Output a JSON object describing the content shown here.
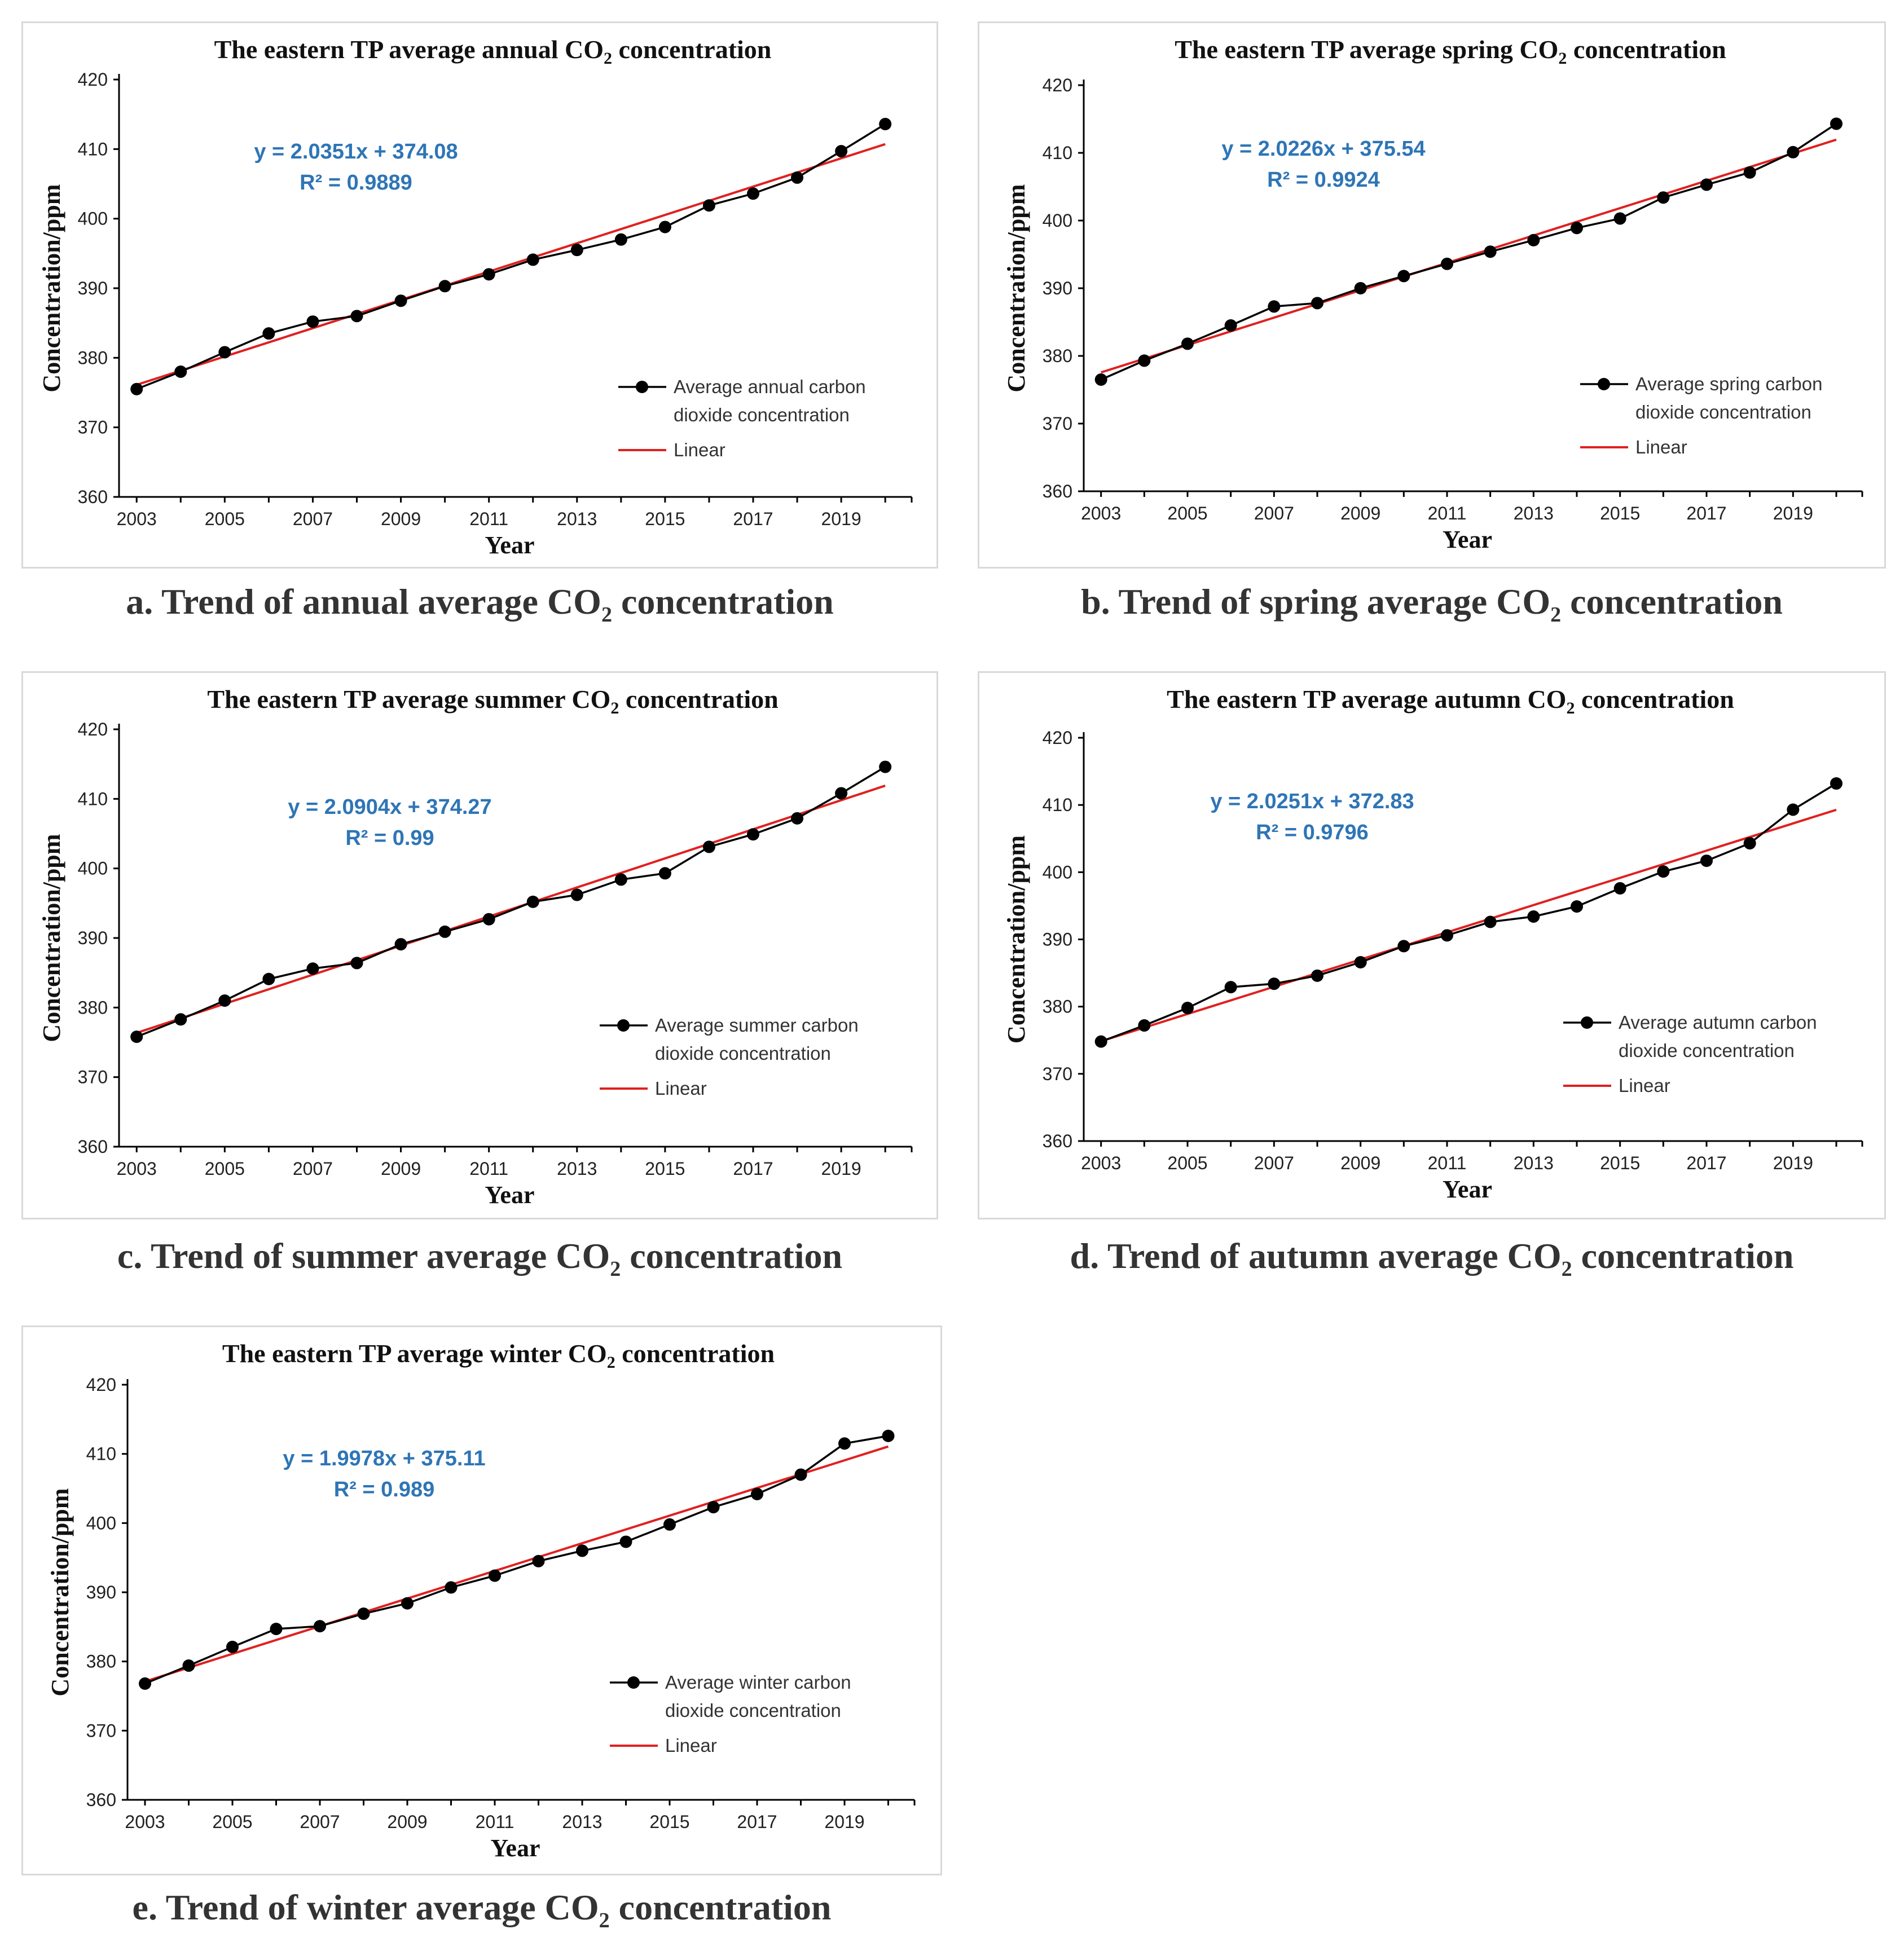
{
  "colors": {
    "series": "#000000",
    "trend": "#e02020",
    "equation": "#2e75b6",
    "axis": "#000000",
    "panel_border": "#d9d9d9",
    "caption": "#333333"
  },
  "captions": [
    {
      "prefix": "a. Trend of annual average CO",
      "sub": "2",
      "suffix": " concentration"
    },
    {
      "prefix": "b. Trend of spring average CO",
      "sub": "2",
      "suffix": " concentration"
    },
    {
      "prefix": "c. Trend of summer average CO",
      "sub": "2",
      "suffix": " concentration"
    },
    {
      "prefix": "d. Trend of autumn average CO",
      "sub": "2",
      "suffix": " concentration"
    },
    {
      "prefix": "e. Trend of winter average CO",
      "sub": "2",
      "suffix": " concentration"
    }
  ],
  "chart_data": [
    {
      "type": "line",
      "title_prefix": "The eastern TP average annual CO",
      "title_sub": "2",
      "title_suffix": " concentration",
      "xlabel": "Year",
      "ylabel": "Concentration/ppm",
      "ylim": [
        360,
        420
      ],
      "yticks": [
        "360",
        "370",
        "380",
        "390",
        "400",
        "410",
        "420"
      ],
      "xtick_labels": [
        "2003",
        "2005",
        "2007",
        "2009",
        "2011",
        "2013",
        "2015",
        "2017",
        "2019"
      ],
      "x": [
        2003,
        2004,
        2005,
        2006,
        2007,
        2008,
        2009,
        2010,
        2011,
        2012,
        2013,
        2014,
        2015,
        2016,
        2017,
        2018,
        2019,
        2020
      ],
      "values": [
        375.5,
        378.0,
        380.8,
        383.5,
        385.2,
        386.0,
        388.2,
        390.3,
        392.0,
        394.1,
        395.5,
        397.0,
        398.8,
        401.9,
        403.6,
        405.9,
        409.7,
        413.6
      ],
      "series_name_line1": "Average annual carbon",
      "series_name_line2": "dioxide concentration",
      "trend_name": "Linear",
      "equation": "y = 2.0351x + 374.08",
      "r2": "R² = 0.9889",
      "slope": 2.0351,
      "intercept": 374.08
    },
    {
      "type": "line",
      "title_prefix": "The eastern TP average spring CO",
      "title_sub": "2",
      "title_suffix": " concentration",
      "xlabel": "Year",
      "ylabel": "Concentration/ppm",
      "ylim": [
        360,
        420
      ],
      "yticks": [
        "360",
        "370",
        "380",
        "390",
        "400",
        "410",
        "420"
      ],
      "xtick_labels": [
        "2003",
        "2005",
        "2007",
        "2009",
        "2011",
        "2013",
        "2015",
        "2017",
        "2019"
      ],
      "x": [
        2003,
        2004,
        2005,
        2006,
        2007,
        2008,
        2009,
        2010,
        2011,
        2012,
        2013,
        2014,
        2015,
        2016,
        2017,
        2018,
        2019,
        2020
      ],
      "values": [
        376.5,
        379.3,
        381.8,
        384.5,
        387.3,
        387.8,
        390.0,
        391.8,
        393.6,
        395.4,
        397.1,
        398.9,
        400.3,
        403.4,
        405.3,
        407.1,
        410.1,
        414.3
      ],
      "series_name_line1": "Average spring carbon",
      "series_name_line2": "dioxide concentration",
      "trend_name": "Linear",
      "equation": "y = 2.0226x + 375.54",
      "r2": "R² = 0.9924",
      "slope": 2.0226,
      "intercept": 375.54
    },
    {
      "type": "line",
      "title_prefix": "The eastern TP average summer CO",
      "title_sub": "2",
      "title_suffix": " concentration",
      "xlabel": "Year",
      "ylabel": "Concentration/ppm",
      "ylim": [
        360,
        420
      ],
      "yticks": [
        "360",
        "370",
        "380",
        "390",
        "400",
        "410",
        "420"
      ],
      "xtick_labels": [
        "2003",
        "2005",
        "2007",
        "2009",
        "2011",
        "2013",
        "2015",
        "2017",
        "2019"
      ],
      "x": [
        2003,
        2004,
        2005,
        2006,
        2007,
        2008,
        2009,
        2010,
        2011,
        2012,
        2013,
        2014,
        2015,
        2016,
        2017,
        2018,
        2019,
        2020
      ],
      "values": [
        375.8,
        378.3,
        381.0,
        384.1,
        385.6,
        386.4,
        389.1,
        390.9,
        392.7,
        395.2,
        396.2,
        398.4,
        399.3,
        403.1,
        404.9,
        407.2,
        410.8,
        414.6
      ],
      "series_name_line1": "Average summer carbon",
      "series_name_line2": "dioxide concentration",
      "trend_name": "Linear",
      "equation": "y = 2.0904x + 374.27",
      "r2": "R² = 0.99",
      "slope": 2.0904,
      "intercept": 374.27
    },
    {
      "type": "line",
      "title_prefix": "The eastern TP average autumn CO",
      "title_sub": "2",
      "title_suffix": " concentration",
      "xlabel": "Year",
      "ylabel": "Concentration/ppm",
      "ylim": [
        360,
        420
      ],
      "yticks": [
        "360",
        "370",
        "380",
        "390",
        "400",
        "410",
        "420"
      ],
      "xtick_labels": [
        "2003",
        "2005",
        "2007",
        "2009",
        "2011",
        "2013",
        "2015",
        "2017",
        "2019"
      ],
      "x": [
        2003,
        2004,
        2005,
        2006,
        2007,
        2008,
        2009,
        2010,
        2011,
        2012,
        2013,
        2014,
        2015,
        2016,
        2017,
        2018,
        2019,
        2020
      ],
      "values": [
        374.8,
        377.2,
        379.8,
        382.9,
        383.4,
        384.6,
        386.6,
        389.0,
        390.6,
        392.6,
        393.4,
        394.9,
        397.6,
        400.1,
        401.7,
        404.3,
        409.3,
        413.2
      ],
      "series_name_line1": "Average autumn carbon",
      "series_name_line2": "dioxide concentration",
      "trend_name": "Linear",
      "equation": "y = 2.0251x + 372.83",
      "r2": "R² = 0.9796",
      "slope": 2.0251,
      "intercept": 372.83
    },
    {
      "type": "line",
      "title_prefix": "The eastern TP average winter CO",
      "title_sub": "2",
      "title_suffix": " concentration",
      "xlabel": "Year",
      "ylabel": "Concentration/ppm",
      "ylim": [
        360,
        420
      ],
      "yticks": [
        "360",
        "370",
        "380",
        "390",
        "400",
        "410",
        "420"
      ],
      "xtick_labels": [
        "2003",
        "2005",
        "2007",
        "2009",
        "2011",
        "2013",
        "2015",
        "2017",
        "2019"
      ],
      "x": [
        2003,
        2004,
        2005,
        2006,
        2007,
        2008,
        2009,
        2010,
        2011,
        2012,
        2013,
        2014,
        2015,
        2016,
        2017,
        2018,
        2019,
        2020
      ],
      "values": [
        376.8,
        379.4,
        382.1,
        384.7,
        385.1,
        386.9,
        388.4,
        390.7,
        392.4,
        394.5,
        396.0,
        397.3,
        399.8,
        402.3,
        404.2,
        407.0,
        411.5,
        412.6
      ],
      "series_name_line1": "Average winter carbon",
      "series_name_line2": "dioxide concentration",
      "trend_name": "Linear",
      "equation": "y = 1.9978x + 375.11",
      "r2": "R² = 0.989",
      "slope": 1.9978,
      "intercept": 375.11
    }
  ]
}
